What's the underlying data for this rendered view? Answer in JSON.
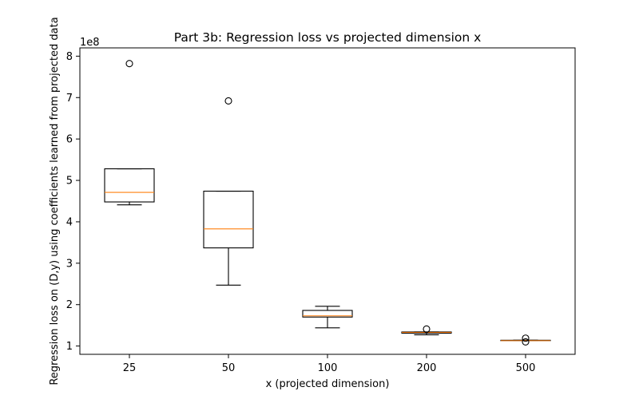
{
  "chart_data": {
    "type": "box",
    "title": "Part 3b: Regression loss vs projected dimension x",
    "xlabel": "x (projected dimension)",
    "ylabel": "Regression loss on (D,y) using coefficients learned from projected data",
    "y_offset_label": "1e8",
    "y_scale": 100000000,
    "ylim": [
      80000000,
      820000000
    ],
    "y_ticks": [
      100000000,
      200000000,
      300000000,
      400000000,
      500000000,
      600000000,
      700000000,
      800000000
    ],
    "y_tick_labels": [
      "1",
      "2",
      "3",
      "4",
      "5",
      "6",
      "7",
      "8"
    ],
    "categories": [
      "25",
      "50",
      "100",
      "200",
      "500"
    ],
    "boxes": [
      {
        "whisker_low": 441000000,
        "q1": 448000000,
        "median": 471000000,
        "q3": 528000000,
        "whisker_high": 528000000,
        "outliers": [
          782000000
        ]
      },
      {
        "whisker_low": 247000000,
        "q1": 337000000,
        "median": 383000000,
        "q3": 474000000,
        "whisker_high": 474000000,
        "outliers": [
          692000000
        ]
      },
      {
        "whisker_low": 144000000,
        "q1": 170000000,
        "median": 173000000,
        "q3": 186000000,
        "whisker_high": 196000000,
        "outliers": []
      },
      {
        "whisker_low": 127000000,
        "q1": 131000000,
        "median": 133000000,
        "q3": 134000000,
        "whisker_high": 134000000,
        "outliers": [
          141000000
        ]
      },
      {
        "whisker_low": 113000000,
        "q1": 113000000,
        "median": 113000000,
        "q3": 114000000,
        "whisker_high": 114000000,
        "outliers": [
          110000000,
          119000000
        ]
      }
    ],
    "colors": {
      "box": "#000000",
      "median": "#ff7f0e",
      "outlier": "#000000"
    },
    "grid": false,
    "legend": "none"
  }
}
